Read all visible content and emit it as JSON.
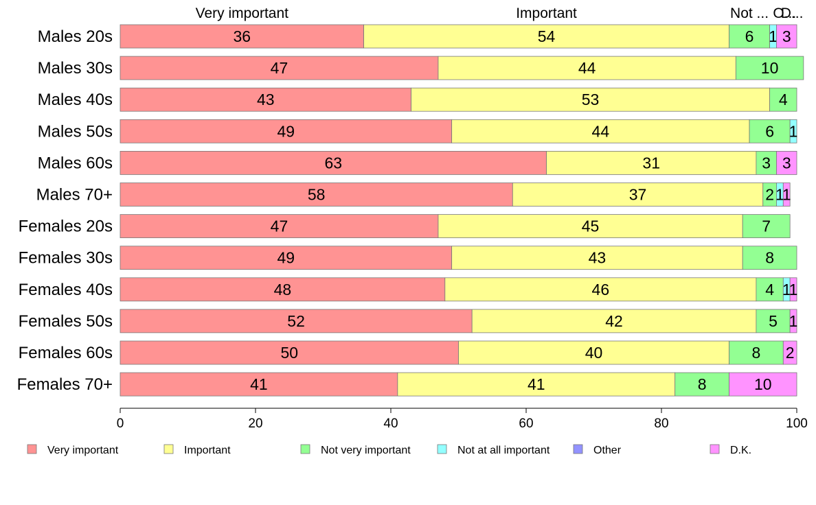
{
  "chart_data": {
    "type": "bar",
    "orientation": "horizontal",
    "stacked": true,
    "title": "",
    "xlabel": "",
    "ylabel": "",
    "xlim": [
      0,
      100
    ],
    "xticks": [
      0,
      20,
      40,
      60,
      80,
      100
    ],
    "grid": false,
    "legend_position": "bottom",
    "categories": [
      "Males 20s",
      "Males 30s",
      "Males 40s",
      "Males 50s",
      "Males 60s",
      "Males 70+",
      "Females 20s",
      "Females 30s",
      "Females 40s",
      "Females 50s",
      "Females 60s",
      "Females 70+"
    ],
    "series": [
      {
        "name": "Very important",
        "color": "#ff9393",
        "values": [
          36,
          47,
          43,
          49,
          63,
          58,
          47,
          49,
          48,
          52,
          50,
          41
        ]
      },
      {
        "name": "Important",
        "color": "#ffff93",
        "values": [
          54,
          44,
          53,
          44,
          31,
          37,
          45,
          43,
          46,
          42,
          40,
          41
        ]
      },
      {
        "name": "Not very important",
        "color": "#93ff93",
        "values": [
          6,
          10,
          4,
          6,
          3,
          2,
          7,
          8,
          4,
          5,
          8,
          8
        ]
      },
      {
        "name": "Not at all important",
        "color": "#93ffff",
        "values": [
          1,
          0,
          0,
          1,
          0,
          1,
          0,
          0,
          1,
          0,
          0,
          0
        ]
      },
      {
        "name": "Other",
        "color": "#9393ff",
        "values": [
          0,
          0,
          0,
          0,
          0,
          0,
          0,
          0,
          0,
          0,
          0,
          0
        ]
      },
      {
        "name": "D.K.",
        "color": "#ff93ff",
        "values": [
          3,
          0,
          0,
          0,
          3,
          1,
          0,
          0,
          1,
          1,
          2,
          10
        ]
      }
    ],
    "top_labels": [
      "Very important",
      "Important",
      "Not ...",
      "O...",
      "D..."
    ]
  }
}
